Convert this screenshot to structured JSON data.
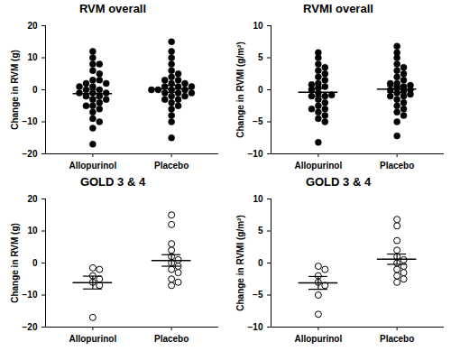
{
  "chart_data": [
    {
      "type": "scatter",
      "title": "RVM overall",
      "y_label": "Change in RVM (g)",
      "categories": [
        "Allopurinol",
        "Placebo"
      ],
      "values": [
        [
          12,
          10,
          8,
          8,
          6,
          5,
          3,
          3,
          2,
          2,
          1,
          0,
          0,
          -1,
          -1,
          -2,
          -2,
          -3,
          -3,
          -4,
          -5,
          -5,
          -6,
          -7,
          -9,
          -10,
          -12,
          -17,
          1,
          -1
        ],
        [
          15,
          12,
          10,
          8,
          6,
          5,
          4,
          3,
          3,
          2,
          2,
          1,
          1,
          0,
          0,
          0,
          -1,
          -1,
          -2,
          -2,
          -3,
          -3,
          -4,
          -5,
          -6,
          -8,
          -10,
          -15,
          1,
          -1,
          0
        ]
      ],
      "means": [
        -1.2,
        0.3
      ],
      "errors": [
        1.3,
        1.1
      ],
      "ylim": [
        -20,
        20
      ],
      "yticks": [
        -20,
        -10,
        0,
        10,
        20
      ],
      "marker": "circle",
      "color": "#000000"
    },
    {
      "type": "scatter",
      "title": "RVMI overall",
      "y_label": "Change in RVMI (g/m²)",
      "categories": [
        "Allopurinol",
        "Placebo"
      ],
      "values": [
        [
          5.8,
          5,
          4,
          3.5,
          3,
          2.5,
          2,
          1.5,
          1,
          0.5,
          0.3,
          0,
          -0.5,
          -1,
          -1,
          -1.5,
          -2,
          -2.5,
          -3,
          -3,
          -3.5,
          -4,
          -4.5,
          -5,
          -8.2,
          0.8,
          -0.8
        ],
        [
          6.8,
          5.8,
          5,
          4,
          3.5,
          3,
          2.5,
          2,
          1.5,
          1,
          1,
          0.5,
          0.3,
          0,
          0,
          -0.2,
          -0.5,
          -1,
          -1,
          -1.5,
          -2,
          -2.5,
          -3,
          -3.5,
          -4,
          -5,
          -7.2,
          0.7,
          -0.7
        ]
      ],
      "means": [
        -0.4,
        0.1
      ],
      "errors": [
        0.6,
        0.5
      ],
      "ylim": [
        -10,
        10
      ],
      "yticks": [
        -10,
        -5,
        0,
        5,
        10
      ],
      "marker": "circle",
      "color": "#000000"
    },
    {
      "type": "scatter",
      "title": "GOLD 3 & 4",
      "y_label": "Change in RVM (g)",
      "categories": [
        "Allopurinol",
        "Placebo"
      ],
      "values": [
        [
          -1.5,
          -2,
          -4,
          -5,
          -6,
          -7,
          -17
        ],
        [
          15,
          12,
          6,
          4,
          2,
          1,
          0,
          -1,
          -2,
          -3,
          -5,
          -6,
          -7
        ]
      ],
      "means": [
        -6.1,
        0.8
      ],
      "errors": [
        2.0,
        1.8
      ],
      "ylim": [
        -20,
        20
      ],
      "yticks": [
        -20,
        -10,
        0,
        10,
        20
      ],
      "marker": "open circle",
      "color": "#000000"
    },
    {
      "type": "scatter",
      "title": "GOLD 3 & 4",
      "y_label": "Change in RVMI (g/m²)",
      "categories": [
        "Allopurinol",
        "Placebo"
      ],
      "values": [
        [
          -0.5,
          -1,
          -2,
          -3,
          -3.5,
          -5,
          -8
        ],
        [
          6.8,
          5.8,
          3.5,
          2,
          1,
          0.5,
          0,
          -0.5,
          -1,
          -1.5,
          -2,
          -2.5,
          -3
        ]
      ],
      "means": [
        -3.1,
        0.6
      ],
      "errors": [
        1.0,
        0.8
      ],
      "ylim": [
        -10,
        10
      ],
      "yticks": [
        -10,
        -5,
        0,
        5,
        10
      ],
      "marker": "open circle",
      "color": "#000000"
    }
  ]
}
